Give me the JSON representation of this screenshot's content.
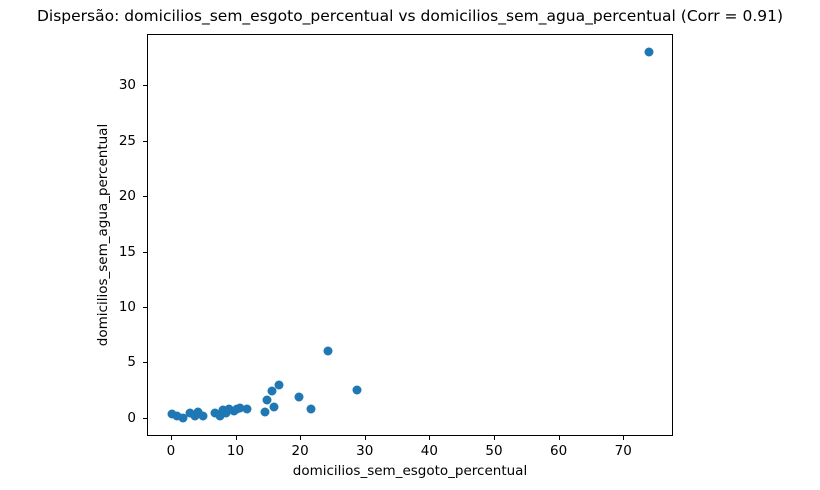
{
  "chart_data": {
    "type": "scatter",
    "title": "Dispersão: domicilios_sem_esgoto_percentual vs domicilios_sem_agua_percentual (Corr = 0.91)",
    "xlabel": "domicilios_sem_esgoto_percentual",
    "ylabel": "domicilios_sem_agua_percentual",
    "correlation": 0.91,
    "marker_color": "#1f77b4",
    "axis_color": "#000000",
    "background_color": "#ffffff",
    "grid": false,
    "legend": "none",
    "xlim": [
      -3.7,
      77.7
    ],
    "ylim": [
      -1.65,
      34.65
    ],
    "xticks": [
      0,
      10,
      20,
      30,
      40,
      50,
      60,
      70
    ],
    "yticks": [
      0,
      5,
      10,
      15,
      20,
      25,
      30
    ],
    "points": [
      [
        0.2,
        0.3
      ],
      [
        0.9,
        0.15
      ],
      [
        1.9,
        0.0
      ],
      [
        3.0,
        0.4
      ],
      [
        3.7,
        0.15
      ],
      [
        4.2,
        0.5
      ],
      [
        4.9,
        0.2
      ],
      [
        6.9,
        0.45
      ],
      [
        7.6,
        0.2
      ],
      [
        8.0,
        0.7
      ],
      [
        8.6,
        0.4
      ],
      [
        9.0,
        0.8
      ],
      [
        9.7,
        0.6
      ],
      [
        10.2,
        0.75
      ],
      [
        10.7,
        0.9
      ],
      [
        11.7,
        0.8
      ],
      [
        14.6,
        0.5
      ],
      [
        14.8,
        1.6
      ],
      [
        15.7,
        2.4
      ],
      [
        15.9,
        1.0
      ],
      [
        16.8,
        3.0
      ],
      [
        19.8,
        1.9
      ],
      [
        21.7,
        0.75
      ],
      [
        24.3,
        6.0
      ],
      [
        28.8,
        2.5
      ],
      [
        74.0,
        33.0
      ]
    ]
  }
}
